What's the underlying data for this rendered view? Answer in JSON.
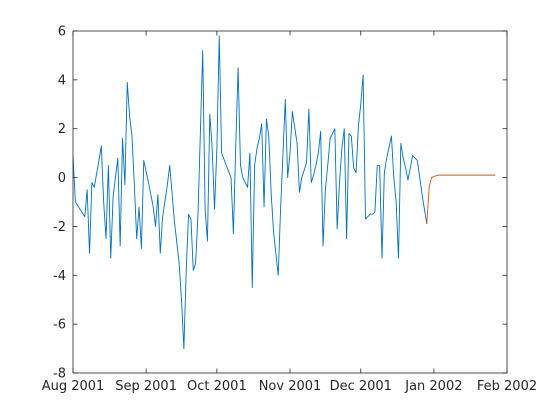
{
  "chart_data": {
    "type": "line",
    "title": "",
    "xlabel": "",
    "ylabel": "",
    "xlim": [
      "2001-08-01",
      "2002-02-01"
    ],
    "ylim": [
      -8,
      6
    ],
    "grid": false,
    "box": true,
    "x_ticks": [
      {
        "date": "2001-08-01",
        "label": "Aug 2001"
      },
      {
        "date": "2001-09-01",
        "label": "Sep 2001"
      },
      {
        "date": "2001-10-01",
        "label": "Oct 2001"
      },
      {
        "date": "2001-11-01",
        "label": "Nov 2001"
      },
      {
        "date": "2001-12-01",
        "label": "Dec 2001"
      },
      {
        "date": "2002-01-01",
        "label": "Jan 2002"
      },
      {
        "date": "2002-02-01",
        "label": "Feb 2002"
      }
    ],
    "y_ticks": [
      -8,
      -6,
      -4,
      -2,
      0,
      2,
      4,
      6
    ],
    "series": [
      {
        "color": "#0072BD",
        "points": [
          [
            "2001-08-01",
            0.9
          ],
          [
            "2001-08-02",
            -1.0
          ],
          [
            "2001-08-04",
            -1.3
          ],
          [
            "2001-08-06",
            -1.6
          ],
          [
            "2001-08-07",
            -0.5
          ],
          [
            "2001-08-08",
            -3.1
          ],
          [
            "2001-08-09",
            -0.2
          ],
          [
            "2001-08-10",
            -0.4
          ],
          [
            "2001-08-12",
            0.7
          ],
          [
            "2001-08-13",
            1.3
          ],
          [
            "2001-08-14",
            -1.0
          ],
          [
            "2001-08-15",
            -2.5
          ],
          [
            "2001-08-16",
            0.5
          ],
          [
            "2001-08-17",
            -3.3
          ],
          [
            "2001-08-18",
            -0.8
          ],
          [
            "2001-08-20",
            0.8
          ],
          [
            "2001-08-21",
            -2.8
          ],
          [
            "2001-08-22",
            1.6
          ],
          [
            "2001-08-23",
            -0.3
          ],
          [
            "2001-08-24",
            3.9
          ],
          [
            "2001-08-25",
            2.5
          ],
          [
            "2001-08-26",
            1.7
          ],
          [
            "2001-08-27",
            -0.3
          ],
          [
            "2001-08-28",
            -2.5
          ],
          [
            "2001-08-29",
            -1.2
          ],
          [
            "2001-08-30",
            -2.9
          ],
          [
            "2001-08-31",
            0.7
          ],
          [
            "2001-09-02",
            -0.2
          ],
          [
            "2001-09-04",
            -1.2
          ],
          [
            "2001-09-05",
            -2.0
          ],
          [
            "2001-09-06",
            -0.7
          ],
          [
            "2001-09-07",
            -3.1
          ],
          [
            "2001-09-08",
            -1.6
          ],
          [
            "2001-09-10",
            -0.3
          ],
          [
            "2001-09-11",
            0.5
          ],
          [
            "2001-09-13",
            -1.8
          ],
          [
            "2001-09-15",
            -3.5
          ],
          [
            "2001-09-16",
            -5.0
          ],
          [
            "2001-09-17",
            -7.0
          ],
          [
            "2001-09-18",
            -3.8
          ],
          [
            "2001-09-19",
            -1.5
          ],
          [
            "2001-09-20",
            -1.7
          ],
          [
            "2001-09-21",
            -3.8
          ],
          [
            "2001-09-22",
            -3.5
          ],
          [
            "2001-09-23",
            -1.5
          ],
          [
            "2001-09-25",
            5.2
          ],
          [
            "2001-09-26",
            -1.3
          ],
          [
            "2001-09-27",
            -2.6
          ],
          [
            "2001-09-28",
            2.6
          ],
          [
            "2001-09-29",
            1.2
          ],
          [
            "2001-09-30",
            -1.3
          ],
          [
            "2001-10-01",
            1.2
          ],
          [
            "2001-10-02",
            5.8
          ],
          [
            "2001-10-03",
            1.0
          ],
          [
            "2001-10-05",
            0.5
          ],
          [
            "2001-10-07",
            0.0
          ],
          [
            "2001-10-08",
            -2.3
          ],
          [
            "2001-10-09",
            1.3
          ],
          [
            "2001-10-10",
            4.5
          ],
          [
            "2001-10-11",
            0.5
          ],
          [
            "2001-10-12",
            0.0
          ],
          [
            "2001-10-14",
            -0.4
          ],
          [
            "2001-10-15",
            1.0
          ],
          [
            "2001-10-16",
            -4.5
          ],
          [
            "2001-10-17",
            0.5
          ],
          [
            "2001-10-18",
            1.2
          ],
          [
            "2001-10-19",
            1.6
          ],
          [
            "2001-10-20",
            2.2
          ],
          [
            "2001-10-21",
            -1.2
          ],
          [
            "2001-10-22",
            2.4
          ],
          [
            "2001-10-23",
            1.7
          ],
          [
            "2001-10-24",
            -0.6
          ],
          [
            "2001-10-25",
            -2.2
          ],
          [
            "2001-10-27",
            -4.0
          ],
          [
            "2001-10-28",
            -1.3
          ],
          [
            "2001-10-30",
            3.2
          ],
          [
            "2001-10-31",
            0.0
          ],
          [
            "2001-11-01",
            1.0
          ],
          [
            "2001-11-02",
            2.7
          ],
          [
            "2001-11-04",
            1.4
          ],
          [
            "2001-11-05",
            -0.6
          ],
          [
            "2001-11-06",
            0.0
          ],
          [
            "2001-11-07",
            0.3
          ],
          [
            "2001-11-08",
            0.6
          ],
          [
            "2001-11-09",
            2.8
          ],
          [
            "2001-11-10",
            -0.2
          ],
          [
            "2001-11-11",
            0.1
          ],
          [
            "2001-11-12",
            0.5
          ],
          [
            "2001-11-13",
            1.0
          ],
          [
            "2001-11-14",
            1.9
          ],
          [
            "2001-11-15",
            -2.8
          ],
          [
            "2001-11-16",
            -0.5
          ],
          [
            "2001-11-17",
            0.5
          ],
          [
            "2001-11-18",
            1.6
          ],
          [
            "2001-11-20",
            2.0
          ],
          [
            "2001-11-21",
            -2.1
          ],
          [
            "2001-11-22",
            -0.2
          ],
          [
            "2001-11-23",
            1.2
          ],
          [
            "2001-11-24",
            2.0
          ],
          [
            "2001-11-25",
            -2.5
          ],
          [
            "2001-11-26",
            1.8
          ],
          [
            "2001-11-27",
            1.7
          ],
          [
            "2001-11-28",
            0.4
          ],
          [
            "2001-11-29",
            0.2
          ],
          [
            "2001-11-30",
            2.1
          ],
          [
            "2001-12-01",
            3.0
          ],
          [
            "2001-12-02",
            4.2
          ],
          [
            "2001-12-03",
            -1.7
          ],
          [
            "2001-12-05",
            -1.5
          ],
          [
            "2001-12-06",
            -1.5
          ],
          [
            "2001-12-07",
            -1.4
          ],
          [
            "2001-12-08",
            0.5
          ],
          [
            "2001-12-09",
            0.5
          ],
          [
            "2001-12-10",
            -3.3
          ],
          [
            "2001-12-11",
            0.2
          ],
          [
            "2001-12-12",
            0.8
          ],
          [
            "2001-12-14",
            1.7
          ],
          [
            "2001-12-15",
            0.0
          ],
          [
            "2001-12-16",
            -1.0
          ],
          [
            "2001-12-17",
            -3.3
          ],
          [
            "2001-12-18",
            1.4
          ],
          [
            "2001-12-19",
            0.8
          ],
          [
            "2001-12-20",
            0.4
          ],
          [
            "2001-12-21",
            -0.1
          ],
          [
            "2001-12-22",
            0.4
          ],
          [
            "2001-12-23",
            0.9
          ],
          [
            "2001-12-25",
            0.7
          ],
          [
            "2001-12-26",
            0.0
          ],
          [
            "2001-12-27",
            -0.7
          ],
          [
            "2001-12-28",
            -1.3
          ],
          [
            "2001-12-29",
            -1.9
          ]
        ]
      },
      {
        "color": "#D95319",
        "points": [
          [
            "2001-12-29",
            -1.9
          ],
          [
            "2001-12-30",
            -0.4
          ],
          [
            "2001-12-31",
            0.0
          ],
          [
            "2002-01-01",
            0.05
          ],
          [
            "2002-01-03",
            0.1
          ],
          [
            "2002-01-06",
            0.1
          ],
          [
            "2002-01-10",
            0.1
          ],
          [
            "2002-01-15",
            0.1
          ],
          [
            "2002-01-20",
            0.1
          ],
          [
            "2002-01-25",
            0.1
          ],
          [
            "2002-01-27",
            0.1
          ]
        ]
      }
    ]
  }
}
